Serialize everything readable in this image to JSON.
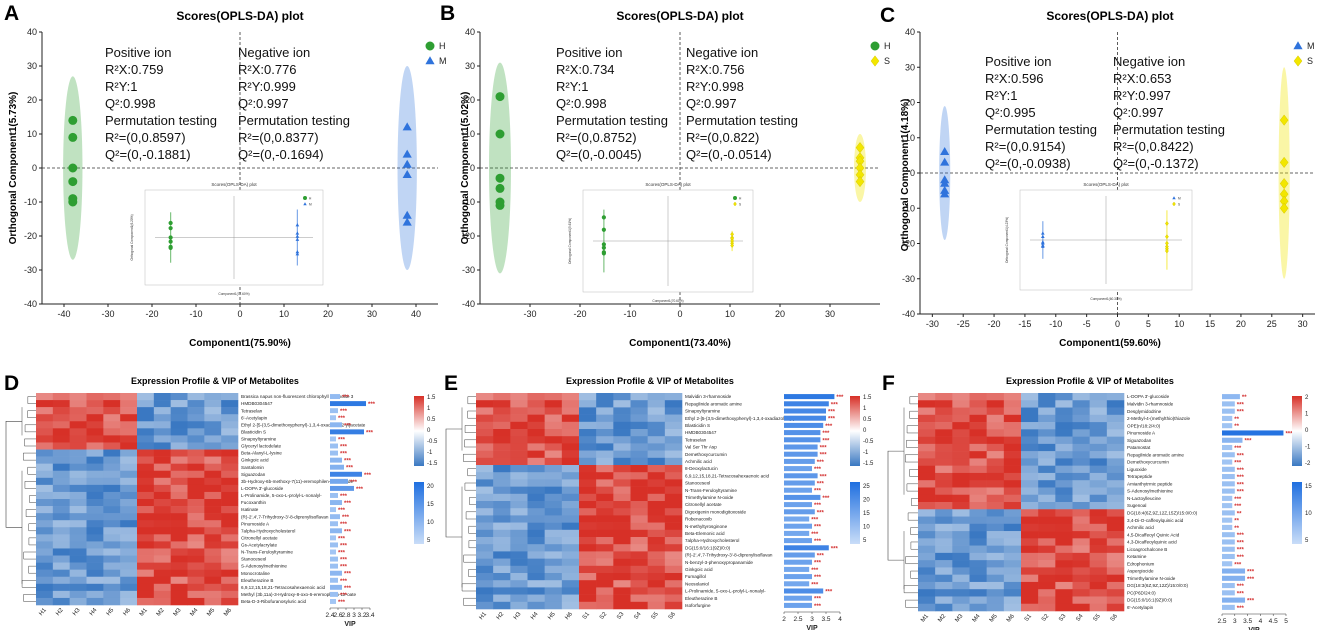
{
  "colors": {
    "H": "#2e9e32",
    "M": "#2f73dc",
    "S": "#f2e600",
    "hot": "#d73027",
    "cold": "#3a78c2",
    "mid": "#ffffff",
    "vip_dark": "#1f6fe0",
    "vip_light": "#b9d4f7",
    "stars": "#d32f2f"
  },
  "score_panels": [
    {
      "letter": "A",
      "title": "Scores(OPLS-DA) plot",
      "ylabel": "Orthogonal Component1(5.73%)",
      "xlabel": "Component1(75.90%)",
      "legend": [
        {
          "name": "H",
          "shape": "circle",
          "color": "#2e9e32"
        },
        {
          "name": "M",
          "shape": "triangle",
          "color": "#2f73dc"
        }
      ],
      "left_lines": [
        "Positive ion",
        "R²X:0.759",
        "R²Y:1",
        "Q²:0.998",
        "Permutation testing",
        "R²=(0,0.8597)",
        "Q²=(0,-0.1881)"
      ],
      "right_lines": [
        "Negative ion",
        "R²X:0.776",
        "R²Y:0.999",
        "Q²:0.997",
        "Permutation testing",
        "R²=(0,0.8377)",
        "Q²=(0,-0.1694)"
      ],
      "inset_title": "Scores(OPLS-DA) plot",
      "inset_xlabel": "Component1(77.60%)",
      "inset_ylabel": "Orthogonal Component1(6.20%)"
    },
    {
      "letter": "B",
      "title": "Scores(OPLS-DA) plot",
      "ylabel": "Orthogonal Component1(5.02%)",
      "xlabel": "Component1(73.40%)",
      "legend": [
        {
          "name": "H",
          "shape": "circle",
          "color": "#2e9e32"
        },
        {
          "name": "S",
          "shape": "diamond",
          "color": "#f2e600"
        }
      ],
      "left_lines": [
        "Positive ion",
        "R²X:0.734",
        "R²Y:1",
        "Q²:0.998",
        "Permutation testing",
        "R²=(0,0.8752)",
        "Q²=(0,-0.0045)"
      ],
      "right_lines": [
        "Negative ion",
        "R²X:0.756",
        "R²Y:0.998",
        "Q²:0.997",
        "Permutation testing",
        "R²=(0,0.822)",
        "Q²=(0,-0.0514)"
      ],
      "inset_title": "Scores(OPLS-DA) plot",
      "inset_xlabel": "Component1(70.60%)",
      "inset_ylabel": "Orthogonal Component1(5.61%)"
    },
    {
      "letter": "C",
      "title": "Scores(OPLS-DA) plot",
      "ylabel": "Orthogonal Component1(4.18%)",
      "xlabel": "Component1(59.60%)",
      "legend": [
        {
          "name": "M",
          "shape": "triangle",
          "color": "#2f73dc"
        },
        {
          "name": "S",
          "shape": "diamond",
          "color": "#f2e600"
        }
      ],
      "left_lines": [
        "Positive ion",
        "R²X:0.596",
        "R²Y:1",
        "Q²:0.995",
        "Permutation testing",
        "R²=(0,0.9154)",
        "Q²=(0,-0.0938)"
      ],
      "right_lines": [
        "Negative ion",
        "R²X:0.653",
        "R²Y:0.997",
        "Q²:0.997",
        "Permutation testing",
        "R²=(0,0.8422)",
        "Q²=(0,-0.1372)"
      ],
      "inset_title": "Scores(OPLS-DA) plot",
      "inset_xlabel": "Component1(60.30%)",
      "inset_ylabel": "Orthogonal Component1(4.23%)"
    }
  ],
  "heat_panels": [
    {
      "letter": "D",
      "title": "Expression Profile & VIP of Metabolites",
      "vip_label": "VIP",
      "samples": [
        "H1",
        "H2",
        "H3",
        "H4",
        "H5",
        "H6",
        "M1",
        "M2",
        "M3",
        "M4",
        "M5",
        "M6"
      ],
      "scale_top": [
        "1.5",
        "1",
        "0.5",
        "0",
        "-0.5",
        "-1",
        "-1.5"
      ],
      "scale_bottom": [
        "20",
        "15",
        "10",
        "5"
      ]
    },
    {
      "letter": "E",
      "title": "Expression Profile & VIP of Metabolites",
      "vip_label": "VIP",
      "samples": [
        "H1",
        "H2",
        "H3",
        "H4",
        "H5",
        "H6",
        "S1",
        "S2",
        "S3",
        "S4",
        "S5",
        "S6"
      ],
      "scale_top": [
        "1.5",
        "1",
        "0.5",
        "0",
        "-0.5",
        "-1",
        "-1.5"
      ],
      "scale_bottom": [
        "25",
        "20",
        "15",
        "10",
        "5"
      ]
    },
    {
      "letter": "F",
      "title": "Expression Profile & VIP of Metabolites",
      "vip_label": "VIP",
      "samples": [
        "M1",
        "M2",
        "M3",
        "M4",
        "M5",
        "M6",
        "S1",
        "S2",
        "S3",
        "S4",
        "S5",
        "S6"
      ],
      "scale_top": [
        "2",
        "1",
        "0",
        "-1",
        "-2"
      ],
      "scale_bottom": [
        "15",
        "10",
        "5"
      ]
    }
  ],
  "chart_data": [
    {
      "type": "scatter",
      "panel": "A",
      "title": "Scores(OPLS-DA) plot",
      "xlabel": "Component1(75.90%)",
      "ylabel": "Orthogonal Component1(5.73%)",
      "xlim": [
        -45,
        45
      ],
      "ylim": [
        -40,
        40
      ],
      "xticks": [
        -40,
        -30,
        -20,
        -10,
        0,
        10,
        20,
        30,
        40
      ],
      "yticks": [
        -40,
        -30,
        -20,
        -10,
        0,
        10,
        20,
        30,
        40
      ],
      "series": [
        {
          "name": "H",
          "shape": "circle",
          "color": "#2e9e32",
          "x": [
            -38,
            -38,
            -38,
            -38,
            -38,
            -38
          ],
          "y": [
            14,
            9,
            0,
            -4,
            -9,
            -10
          ],
          "ellipse": {
            "cx": -38,
            "rx": 2.2,
            "ry": 27
          }
        },
        {
          "name": "M",
          "shape": "triangle",
          "color": "#2f73dc",
          "x": [
            38,
            38,
            38,
            38,
            38,
            38
          ],
          "y": [
            12,
            4,
            1,
            -2,
            -14,
            -16
          ],
          "ellipse": {
            "cx": 38,
            "rx": 2.2,
            "ry": 30
          }
        }
      ]
    },
    {
      "type": "scatter",
      "panel": "B",
      "title": "Scores(OPLS-DA) plot",
      "xlabel": "Component1(73.40%)",
      "ylabel": "Orthogonal Component1(5.02%)",
      "xlim": [
        -40,
        40
      ],
      "ylim": [
        -40,
        40
      ],
      "xticks": [
        -30,
        -20,
        -10,
        0,
        10,
        20,
        30
      ],
      "yticks": [
        -40,
        -30,
        -20,
        -10,
        0,
        10,
        20,
        30,
        40
      ],
      "series": [
        {
          "name": "H",
          "shape": "circle",
          "color": "#2e9e32",
          "x": [
            -36,
            -36,
            -36,
            -36,
            -36,
            -36
          ],
          "y": [
            21,
            10,
            -3,
            -6,
            -10,
            -11
          ],
          "ellipse": {
            "cx": -36,
            "rx": 2.2,
            "ry": 31
          }
        },
        {
          "name": "S",
          "shape": "diamond",
          "color": "#f2e600",
          "x": [
            36,
            36,
            36,
            36,
            36,
            36
          ],
          "y": [
            6,
            3,
            2,
            0,
            -2,
            -4
          ],
          "ellipse": {
            "cx": 36,
            "rx": 1.2,
            "ry": 10
          }
        }
      ]
    },
    {
      "type": "scatter",
      "panel": "C",
      "title": "Scores(OPLS-DA) plot",
      "xlabel": "Component1(59.60%)",
      "ylabel": "Orthogonal Component1(4.18%)",
      "xlim": [
        -32,
        32
      ],
      "ylim": [
        -40,
        40
      ],
      "xticks": [
        -30,
        -25,
        -20,
        -15,
        -10,
        -5,
        0,
        5,
        10,
        15,
        20,
        25,
        30
      ],
      "yticks": [
        -40,
        -30,
        -20,
        -10,
        0,
        10,
        20,
        30,
        40
      ],
      "series": [
        {
          "name": "M",
          "shape": "triangle",
          "color": "#2f73dc",
          "x": [
            -28,
            -28,
            -28,
            -28,
            -28,
            -28
          ],
          "y": [
            6,
            3,
            -2,
            -3,
            -5,
            -6
          ],
          "ellipse": {
            "cx": -28,
            "rx": 0.9,
            "ry": 19
          }
        },
        {
          "name": "S",
          "shape": "diamond",
          "color": "#f2e600",
          "x": [
            27,
            27,
            27,
            27,
            27,
            27
          ],
          "y": [
            15,
            3,
            -3,
            -6,
            -8,
            -10
          ],
          "ellipse": {
            "cx": 27,
            "rx": 0.9,
            "ry": 30
          }
        }
      ]
    },
    {
      "type": "heatmap",
      "panel": "D",
      "title": "Expression Profile & VIP of Metabolites",
      "columns": [
        "H1",
        "H2",
        "H3",
        "H4",
        "H5",
        "H6",
        "M1",
        "M2",
        "M3",
        "M4",
        "M5",
        "M6"
      ],
      "vip_axis": {
        "label": "VIP",
        "ticks": [
          "2.4",
          "2.6",
          "2.8",
          "3",
          "3.2",
          "3.4"
        ],
        "min": 2.4,
        "max": 3.4
      },
      "up_groups": 1,
      "split_row": 8,
      "rows": [
        "Brassica napus non-fluorescent chlorophyll catabolite 3",
        "HMDB0304547",
        "Tetraselan",
        "6'-Acetylapin",
        "Ethyl 2-[5-(3,5-dimethoxyphenyl)-1,3,4-oxadiazol-2-yl]acetate",
        "Blasticidin S",
        "Sinapoyltyramine",
        "Glyceryl lactodelate",
        "Beta-Alanyl-L-lysine",
        "Ginkgoic acid",
        "Santalomin",
        "Siguazodan",
        "3b-Hydroxy-6b-methoxy-7(11)-eremophilen-12,8a-olide",
        "L-DOPA 3'-glucoside",
        "L-Prolinamide, 5-oxo-L-prolyl-L-nonalyl-",
        "Fucoxanthin",
        "Isatinate",
        "(R)-2',4',7-Trihydroxy-3'-8-diprenylisoflavan",
        "Pinumoside A",
        "7alpha-Hydroxycholesterol",
        "Citronellyl acetate",
        "Gs-Acetylacrylate",
        "N-Trans-Feruloyltyramine",
        "Stanoceseol",
        "S-Adenosylmethionine",
        "Monocrotaline",
        "Eleutherazine B",
        "6,9,12,15,18,21-Tetracosahexaenoic acid",
        "Methyl (3b,11a)-3-Hydroxy-8-oxo-6-eremophilen-12-oate",
        "Beta-D-3-Ribofuranosyluric acid"
      ],
      "vip": [
        2.65,
        3.3,
        2.6,
        2.55,
        2.7,
        3.25,
        2.55,
        2.6,
        2.6,
        2.7,
        2.75,
        3.2,
        2.85,
        3.0,
        2.6,
        2.7,
        2.55,
        2.65,
        2.6,
        2.7,
        2.55,
        2.6,
        2.55,
        2.6,
        2.6,
        2.7,
        2.6,
        2.7,
        2.6,
        2.55
      ],
      "stars": [
        "***",
        "***",
        "***",
        "***",
        "***",
        "***",
        "***",
        "***",
        "***",
        "***",
        "***",
        "***",
        "***",
        "***",
        "***",
        "***",
        "***",
        "***",
        "***",
        "***",
        "***",
        "***",
        "***",
        "***",
        "***",
        "***",
        "***",
        "***",
        "***",
        "***"
      ]
    },
    {
      "type": "heatmap",
      "panel": "E",
      "title": "Expression Profile & VIP of Metabolites",
      "columns": [
        "H1",
        "H2",
        "H3",
        "H4",
        "H5",
        "H6",
        "S1",
        "S2",
        "S3",
        "S4",
        "S5",
        "S6"
      ],
      "vip_axis": {
        "label": "VIP",
        "ticks": [
          "2",
          "2.5",
          "3",
          "3.5",
          "4"
        ],
        "min": 2,
        "max": 4
      },
      "up_groups": 1,
      "split_row": 10,
      "rows": [
        "Malvidin 3-rhamnoside",
        "Repaglinide aromatic amine",
        "Sinapoyltyramine",
        "Ethyl 2-[5-(3,5-dimethoxyphenyl)-1,3,4-oxadiazol-2-yl]acetate",
        "Blasticidin S",
        "HMDB0304547",
        "Tetraselan",
        "Val Ser Thr Asp",
        "Demethoxycurcumin",
        "Achmilic acid",
        "8-Deoxylactucin",
        "6,9,12,15,18,21-Tetracosahexaenoic acid",
        "Stanoceseol",
        "N-Trans-Feruloyltyramine",
        "Trimethylamine N-oxide",
        "Citronellyl acetate",
        "Digoxigenin monodigitoxoside",
        "Robenacoxib",
        "N-methyltyrosginone",
        "Beta-Elemonic acid",
        "7alpha-Hydroxycholesterol",
        "DG(15:0/16:1(9Z)/0:0)",
        "(R)-2',4',7-Trihydroxy-3'-8-diprenylisoflavan",
        "N-benzyl-3-phenoxypropanamide",
        "Ginkgoic acid",
        "Fumagillol",
        "Neosolaniol",
        "L-Prolinamide, 5-oxo-L-prolyl-L-nonalyl-",
        "Eleutherazine B",
        "Isoforfurgine"
      ],
      "vip": [
        3.8,
        3.6,
        3.5,
        3.5,
        3.4,
        3.3,
        3.3,
        3.2,
        3.2,
        3.1,
        3.0,
        3.2,
        3.1,
        3.0,
        3.3,
        3.0,
        3.1,
        2.9,
        3.0,
        2.9,
        3.0,
        3.6,
        3.1,
        3.0,
        2.9,
        3.0,
        2.9,
        3.4,
        3.0,
        3.0
      ],
      "stars": [
        "***",
        "***",
        "***",
        "***",
        "***",
        "***",
        "***",
        "***",
        "***",
        "***",
        "***",
        "***",
        "***",
        "***",
        "***",
        "***",
        "***",
        "***",
        "***",
        "***",
        "***",
        "***",
        "***",
        "***",
        "***",
        "***",
        "***",
        "***",
        "***",
        "***"
      ]
    },
    {
      "type": "heatmap",
      "panel": "F",
      "title": "Expression Profile & VIP of Metabolites",
      "columns": [
        "M1",
        "M2",
        "M3",
        "M4",
        "M5",
        "M6",
        "S1",
        "S2",
        "S3",
        "S4",
        "S5",
        "S6"
      ],
      "vip_axis": {
        "label": "VIP",
        "ticks": [
          "2.5",
          "3",
          "3.5",
          "4",
          "4.5",
          "5"
        ],
        "min": 2.5,
        "max": 5
      },
      "up_groups": 1,
      "split_row": 16,
      "rows": [
        "L-DOPA 3'-glucoside",
        "Malvidin 3-rhamnoside",
        "Desglymidodrine",
        "2-Methyl-4-(methylthio)thiazole",
        "OPE(n/18:2/4:0)",
        "Pinumoside A",
        "Siguazodan",
        "Patamostat",
        "Repaglinide aromatic amine",
        "Demethoxycurcumin",
        "Liguoxide",
        "Tetrapeptide",
        "Amianthytrmic peptide",
        "S-Adenosylmethionine",
        "N-Lactoylleucine",
        "Sugenoal",
        "DG(18:4(6Z,9Z,12Z,15Z)/15:0/0:0)",
        "3,4-Di-O-caffeoylquinic acid",
        "Achmilic acid",
        "4,5-Dicaffeoyl Quinic Acid",
        "4,3-Dicaffeoylquinic acid",
        "Licoagrochalcone B",
        "Ketamine",
        "Edrophonium",
        "Aspergiocide",
        "Trimethylamine N-oxide",
        "DG(18:3(6Z,9Z,12Z)/15:0/0:0)",
        "PC(P6D/24:0)",
        "DG(15:0/16:1(9Z)/0:0)",
        "6'-Acetylapin"
      ],
      "vip": [
        3.2,
        3.0,
        3.0,
        2.9,
        2.9,
        4.9,
        3.3,
        2.9,
        3.0,
        2.9,
        3.0,
        3.0,
        3.0,
        3.0,
        2.9,
        2.9,
        3.0,
        2.9,
        2.9,
        3.0,
        3.0,
        3.0,
        3.0,
        2.9,
        3.4,
        3.4,
        3.0,
        3.0,
        3.4,
        3.0
      ],
      "stars": [
        "**",
        "***",
        "***",
        "**",
        "**",
        "***",
        "***",
        "***",
        "***",
        "***",
        "***",
        "***",
        "***",
        "***",
        "***",
        "***",
        "**",
        "**",
        "**",
        "***",
        "***",
        "***",
        "***",
        "***",
        "***",
        "***",
        "***",
        "***",
        "***",
        "***"
      ]
    }
  ]
}
